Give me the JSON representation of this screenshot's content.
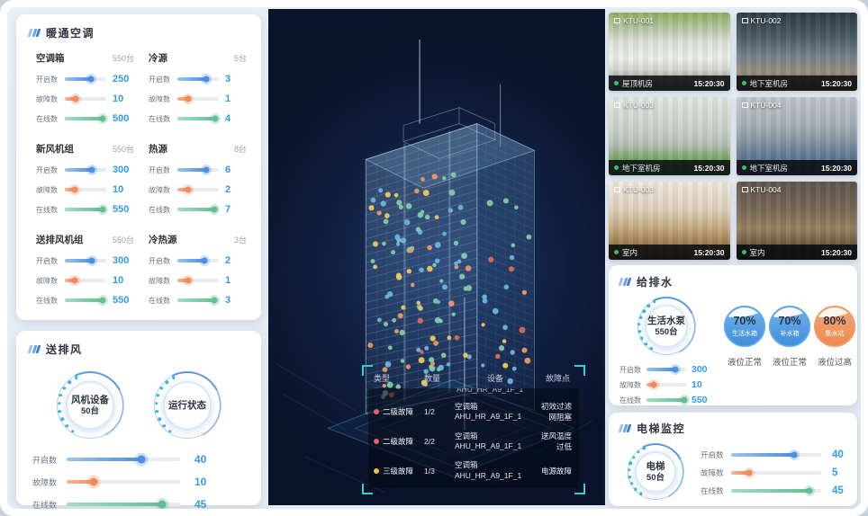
{
  "colors": {
    "blue": "#4a8fe0",
    "orange": "#f08a5c",
    "green": "#62bf93",
    "value_blue": "#2f9bed",
    "severity2": "#e6606e",
    "severity3": "#f1c13a",
    "bracket": "#30d2d4"
  },
  "hvac": {
    "title": "暖通空调",
    "groups": [
      {
        "name": "空调箱",
        "count": "550台",
        "rows": [
          {
            "label": "开启数",
            "value": "250",
            "pct": 62
          },
          {
            "label": "故障数",
            "value": "10",
            "pct": 26
          },
          {
            "label": "在线数",
            "value": "500",
            "pct": 92
          }
        ]
      },
      {
        "name": "冷源",
        "count": "5台",
        "rows": [
          {
            "label": "开启数",
            "value": "3",
            "pct": 70
          },
          {
            "label": "故障数",
            "value": "1",
            "pct": 26
          },
          {
            "label": "在线数",
            "value": "4",
            "pct": 92
          }
        ]
      },
      {
        "name": "新风机组",
        "count": "550台",
        "rows": [
          {
            "label": "开启数",
            "value": "300",
            "pct": 66
          },
          {
            "label": "故障数",
            "value": "10",
            "pct": 24
          },
          {
            "label": "在线数",
            "value": "550",
            "pct": 92
          }
        ]
      },
      {
        "name": "热源",
        "count": "8台",
        "rows": [
          {
            "label": "开启数",
            "value": "6",
            "pct": 70
          },
          {
            "label": "故障数",
            "value": "2",
            "pct": 26
          },
          {
            "label": "在线数",
            "value": "7",
            "pct": 90
          }
        ]
      },
      {
        "name": "送排风机组",
        "count": "550台",
        "rows": [
          {
            "label": "开启数",
            "value": "300",
            "pct": 66
          },
          {
            "label": "故障数",
            "value": "10",
            "pct": 24
          },
          {
            "label": "在线数",
            "value": "550",
            "pct": 92
          }
        ]
      },
      {
        "name": "冷热源",
        "count": "3台",
        "rows": [
          {
            "label": "开启数",
            "value": "2",
            "pct": 66
          },
          {
            "label": "故障数",
            "value": "1",
            "pct": 26
          },
          {
            "label": "在线数",
            "value": "3",
            "pct": 90
          }
        ]
      }
    ]
  },
  "fans": {
    "title": "送排风",
    "gauge1": {
      "line1": "风机设备",
      "line2": "50台"
    },
    "gauge2": {
      "line1": "运行状态"
    },
    "rows": [
      {
        "label": "开启数",
        "value": "40",
        "pct": 66
      },
      {
        "label": "故障数",
        "value": "10",
        "pct": 24
      },
      {
        "label": "在线数",
        "value": "45",
        "pct": 84
      }
    ]
  },
  "cameras": {
    "tiles": [
      {
        "id": "KTU-001",
        "place": "屋顶机房",
        "time": "15:20:30"
      },
      {
        "id": "KTU-002",
        "place": "地下室机房",
        "time": "15:20:30"
      },
      {
        "id": "KTU-003",
        "place": "地下室机房",
        "time": "15:20:30"
      },
      {
        "id": "KTU-004",
        "place": "地下室机房",
        "time": "15:20:30"
      },
      {
        "id": "KTU-003",
        "place": "室内",
        "time": "15:20:30"
      },
      {
        "id": "KTU-004",
        "place": "室内",
        "time": "15:20:30"
      }
    ]
  },
  "water": {
    "title": "给排水",
    "gauge": {
      "line1": "生活水泵",
      "line2": "550台"
    },
    "rows": [
      {
        "label": "开启数",
        "value": "300",
        "pct": 72
      },
      {
        "label": "故障数",
        "value": "10",
        "pct": 18
      },
      {
        "label": "在线数",
        "value": "550",
        "pct": 95
      }
    ],
    "tanks": [
      {
        "pct": "70%",
        "name": "生活水箱",
        "status": "液位正常",
        "theme": "blue"
      },
      {
        "pct": "70%",
        "name": "补水箱",
        "status": "液位正常",
        "theme": "blue"
      },
      {
        "pct": "80%",
        "name": "集水坑",
        "status": "液位过高",
        "theme": "orange"
      }
    ]
  },
  "elevator": {
    "title": "电梯监控",
    "gauge": {
      "line1": "电梯",
      "line2": "50台"
    },
    "rows": [
      {
        "label": "开启数",
        "value": "40",
        "pct": 70
      },
      {
        "label": "故障数",
        "value": "5",
        "pct": 20
      },
      {
        "label": "在线数",
        "value": "45",
        "pct": 87
      }
    ]
  },
  "faults": {
    "headers": [
      "类型",
      "数量",
      "设备",
      "故障点"
    ],
    "partial_device": "AHU_HR_A9_1F_1",
    "rows": [
      {
        "level": "二级故障",
        "qty": "1/2",
        "device_type": "空调箱",
        "device_id": "AHU_HR_A9_1F_1",
        "point": "初效过滤网阻塞",
        "severity": "level2"
      },
      {
        "level": "二级故障",
        "qty": "2/2",
        "device_type": "空调箱",
        "device_id": "AHU_HR_A9_1F_1",
        "point": "送风温度过低",
        "severity": "level2"
      },
      {
        "level": "三级故障",
        "qty": "1/3",
        "device_type": "空调箱",
        "device_id": "AHU_HR_A9_1F_1",
        "point": "电源故障",
        "severity": "level3"
      }
    ]
  }
}
